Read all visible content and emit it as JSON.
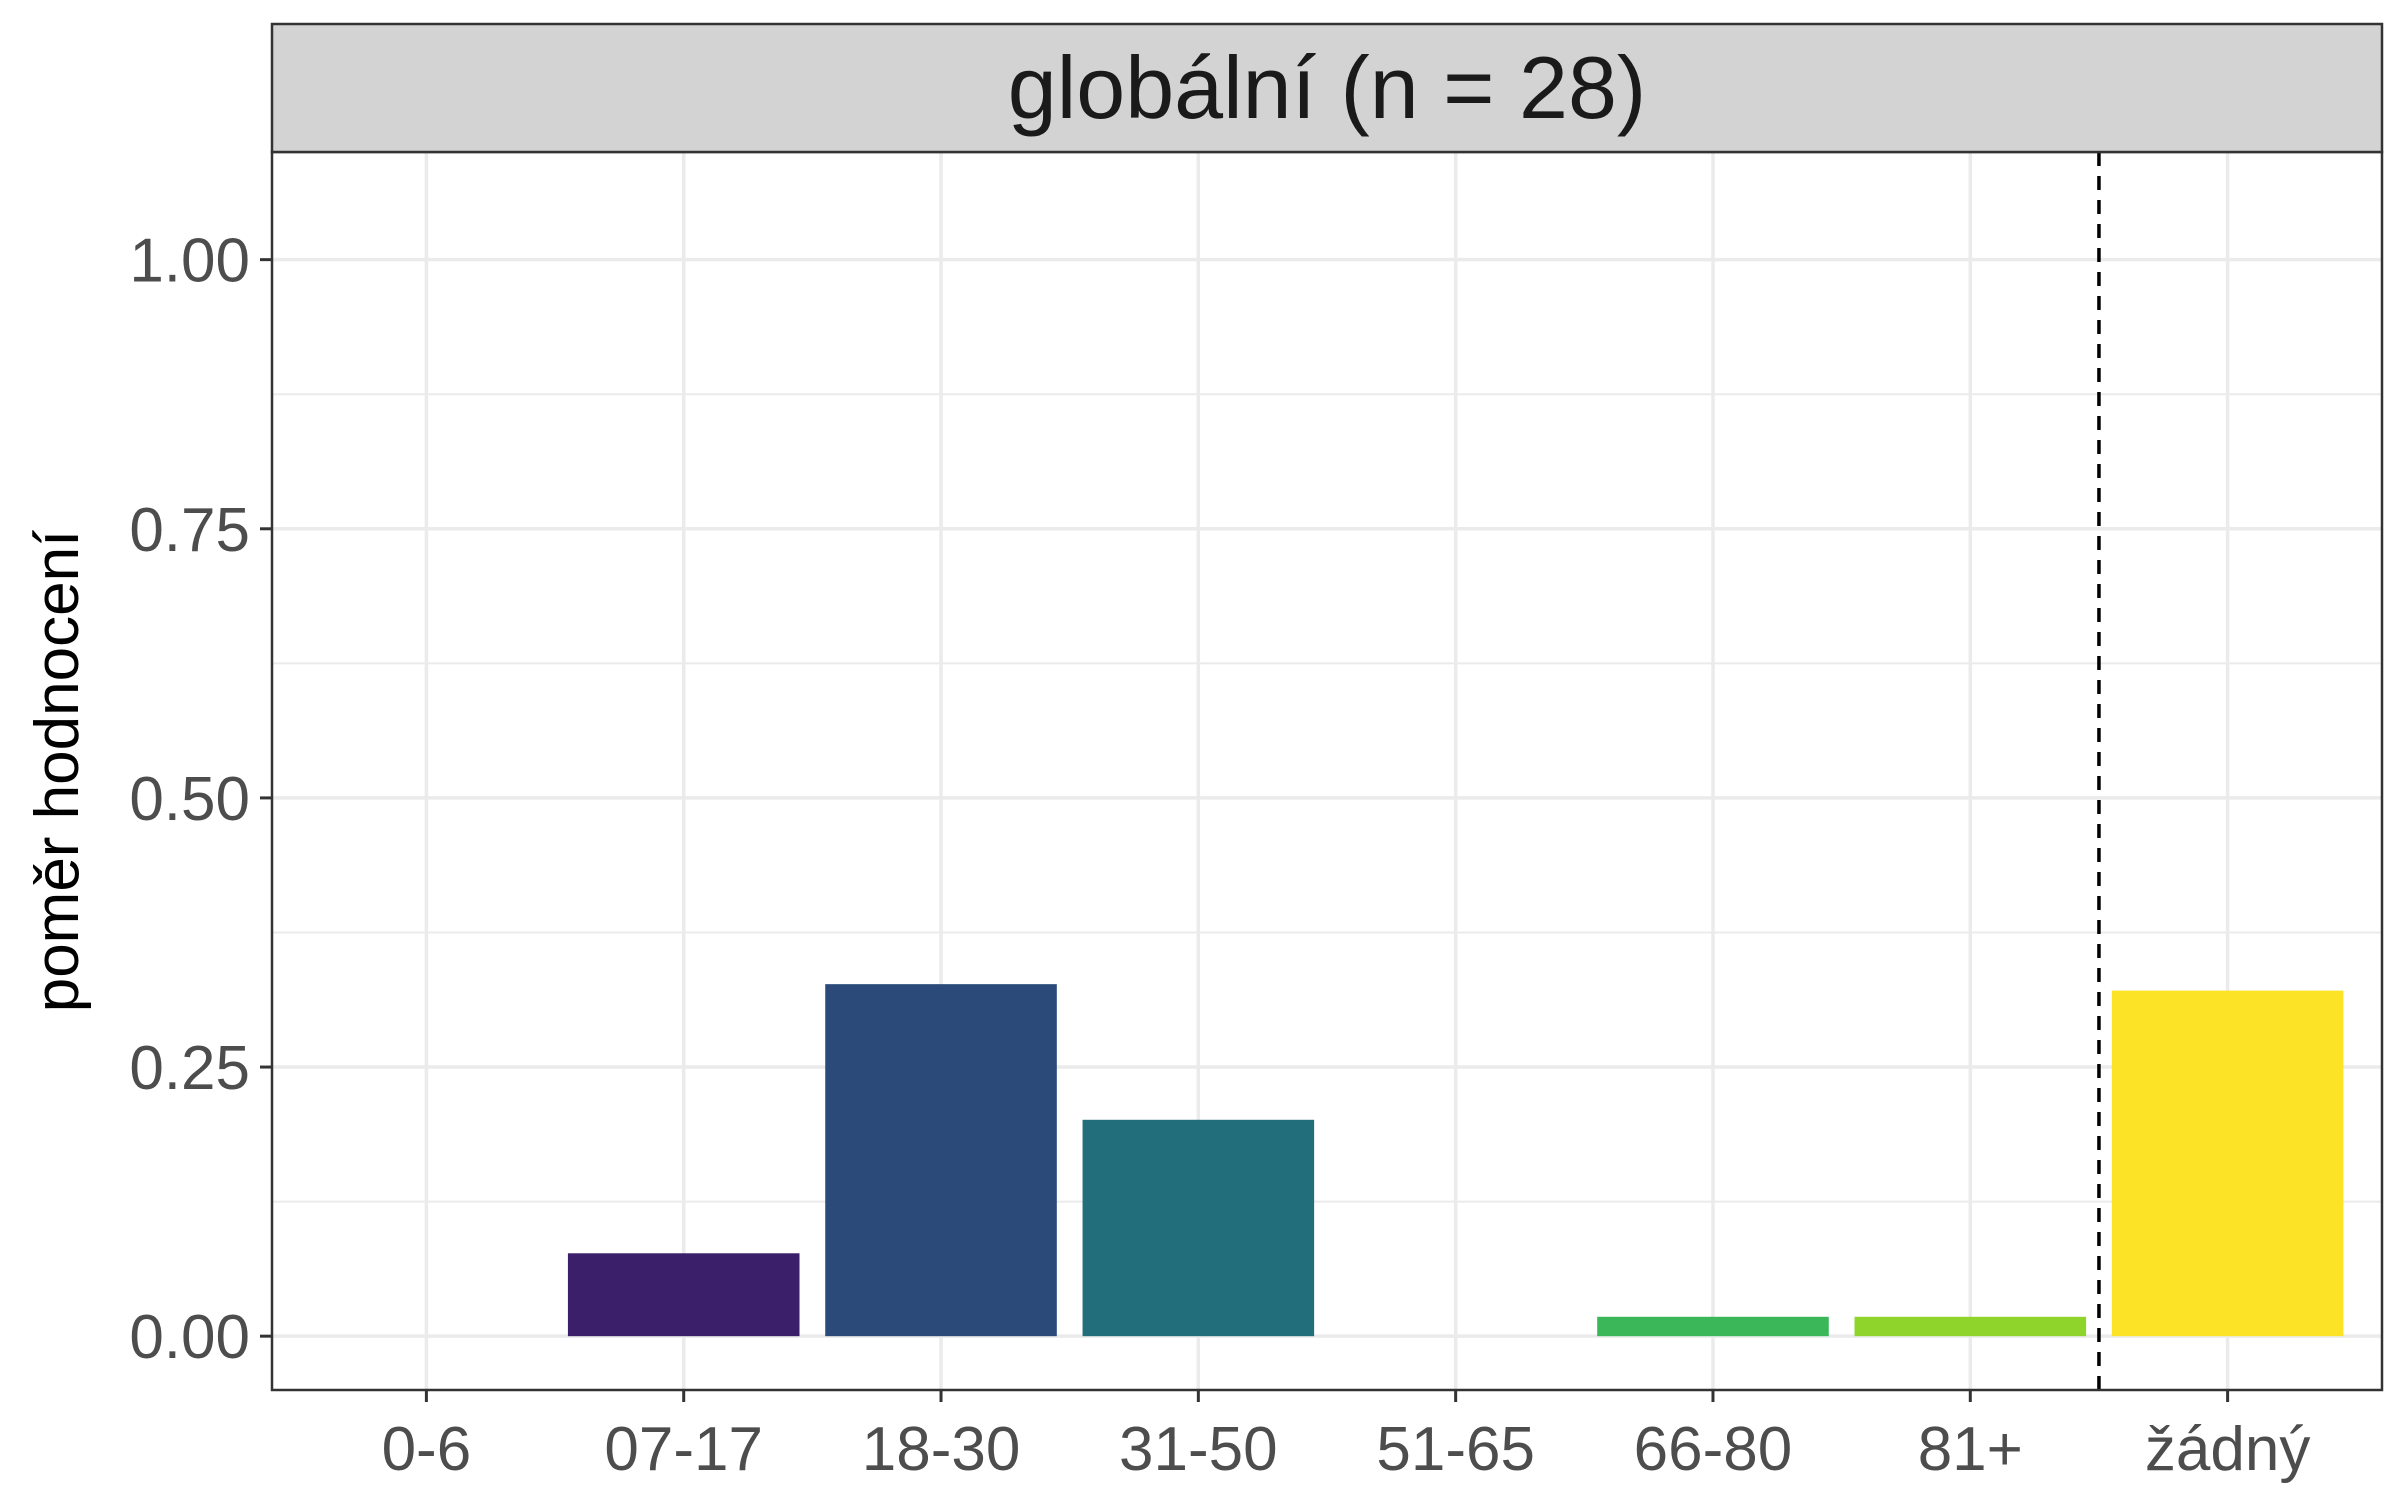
{
  "chart_data": {
    "type": "bar",
    "title": "globální (n = 28)",
    "ylabel": "poměr hodnocení",
    "xlabel": "",
    "categories": [
      "0-6",
      "07-17",
      "18-30",
      "31-50",
      "51-65",
      "66-80",
      "81+",
      "žádný"
    ],
    "values": [
      0.0,
      0.077,
      0.327,
      0.201,
      0.0,
      0.018,
      0.018,
      0.321
    ],
    "colors": [
      "#440154",
      "#3b1f6b",
      "#2b4a7a",
      "#226e7a",
      "#1e9b8a",
      "#3bb75a",
      "#8fd42b",
      "#fde325"
    ],
    "ylim": [
      -0.05,
      1.1
    ],
    "yticks": [
      "0.00",
      "0.25",
      "0.50",
      "0.75",
      "1.00"
    ],
    "ytick_values": [
      0,
      0.25,
      0.5,
      0.75,
      1.0
    ],
    "reference_line": {
      "position": "between 81+ and žádný",
      "style": "dashed",
      "color": "#000000"
    },
    "strip_color": "#d3d3d3",
    "grid": true
  }
}
